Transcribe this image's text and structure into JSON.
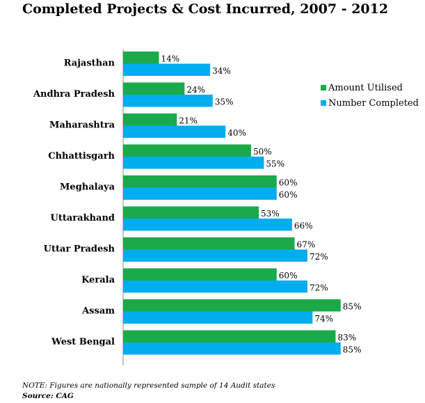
{
  "title": "Completed Projects & Cost Incurred, 2007 - 2012",
  "note": "NOTE: Figures are nationally represented sample of 14 Audit states",
  "source": "Source: CAG",
  "chart_data": {
    "type": "bar",
    "orientation": "horizontal",
    "title": "Completed Projects & Cost Incurred, 2007 - 2012",
    "categories": [
      "Rajasthan",
      "Andhra Pradesh",
      "Maharashtra",
      "Chhattisgarh",
      "Meghalaya",
      "Uttarakhand",
      "Uttar Pradesh",
      "Kerala",
      "Assam",
      "West Bengal"
    ],
    "series": [
      {
        "name": "Amount Utilised",
        "color": "#1aaa4a",
        "values": [
          14,
          24,
          21,
          50,
          60,
          53,
          67,
          60,
          85,
          83
        ]
      },
      {
        "name": "Number Completed",
        "color": "#00aeef",
        "values": [
          34,
          35,
          40,
          55,
          60,
          66,
          72,
          72,
          74,
          85
        ]
      }
    ],
    "value_suffix": "%",
    "xlim": [
      0,
      100
    ],
    "grid": false,
    "legend_position": "top-right"
  }
}
